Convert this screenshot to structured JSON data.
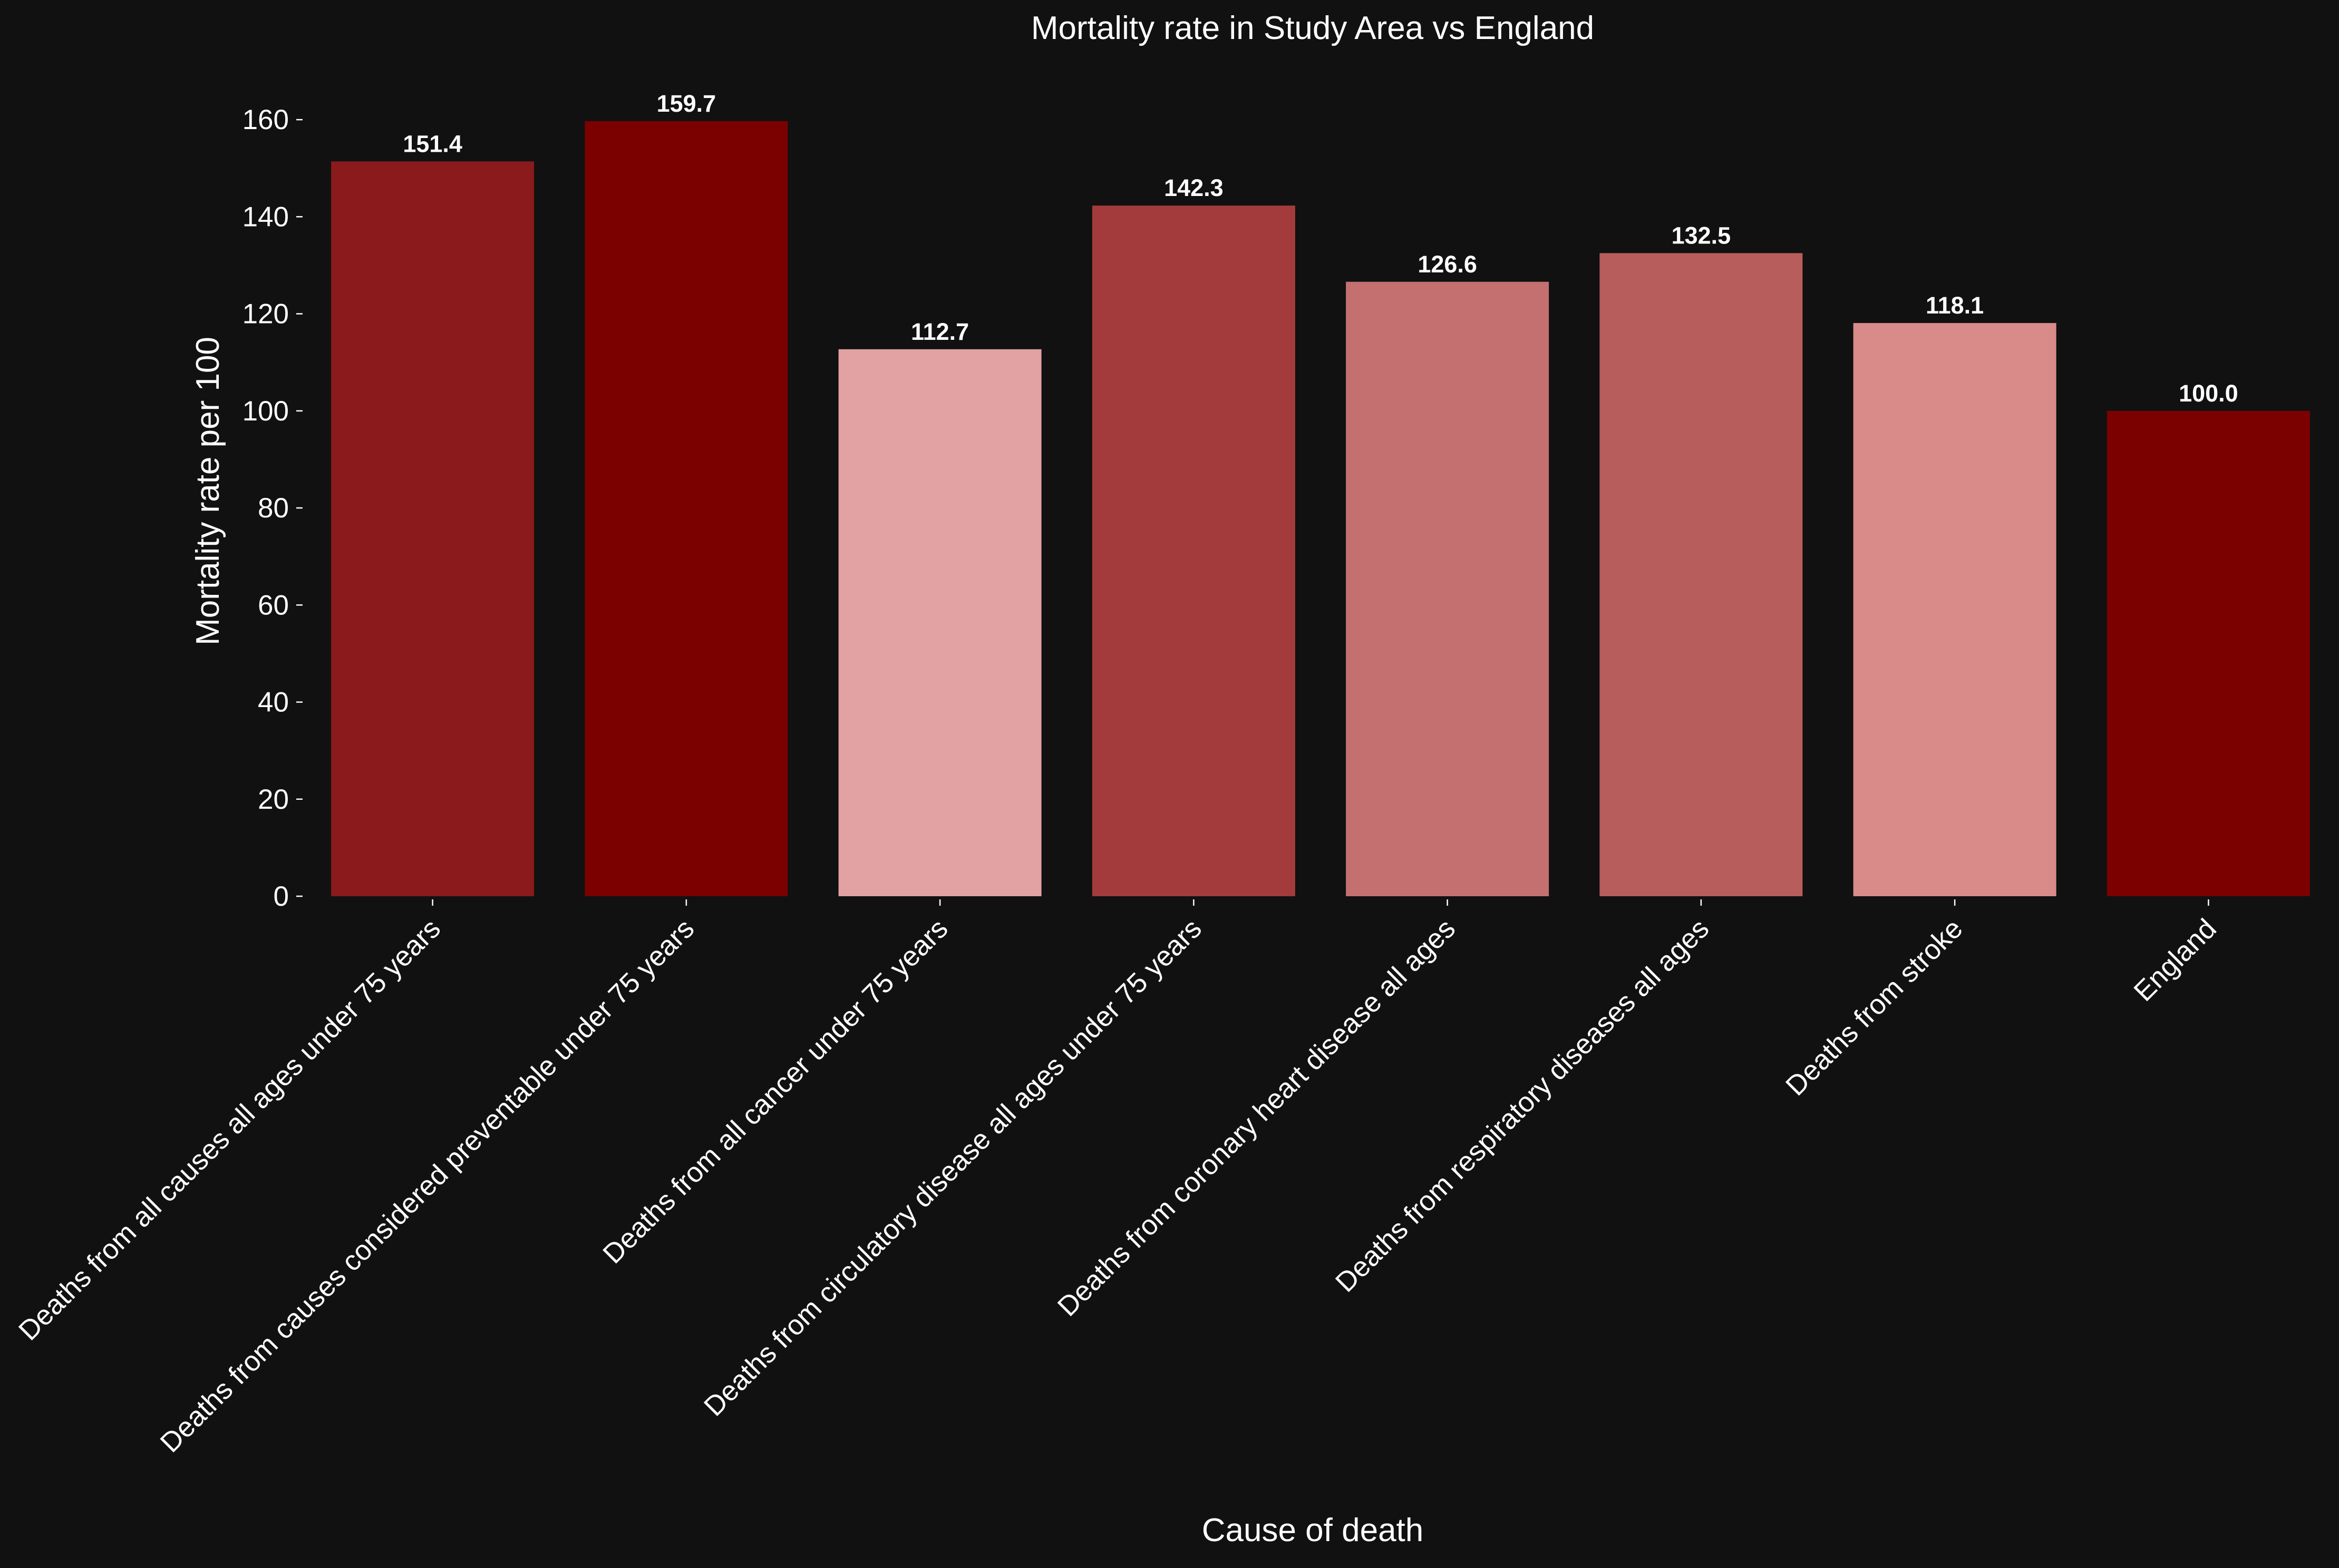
{
  "chart_data": {
    "type": "bar",
    "title": "Mortality rate in Study Area vs England",
    "xlabel": "Cause of death",
    "ylabel": "Mortality rate per 100",
    "ylim": [
      0,
      170
    ],
    "yticks": [
      0,
      20,
      40,
      60,
      80,
      100,
      120,
      140,
      160
    ],
    "grid": false,
    "legend": "none",
    "categories": [
      "Deaths from all causes all ages under 75 years",
      "Deaths from causes considered preventable under 75 years",
      "Deaths from all cancer under 75 years",
      "Deaths from circulatory disease all ages under 75 years",
      "Deaths from coronary heart disease all ages",
      "Deaths from respiratory diseases all ages",
      "Deaths from stroke",
      "England"
    ],
    "values": [
      151.4,
      159.7,
      112.7,
      142.3,
      126.6,
      132.5,
      118.1,
      100.0
    ],
    "data_labels": [
      "151.4",
      "159.7",
      "112.7",
      "142.3",
      "126.6",
      "132.5",
      "118.1",
      "100.0"
    ],
    "colors": [
      "#8b1a1d",
      "#7b0000",
      "#e2a1a2",
      "#a33b3d",
      "#c47070",
      "#b75d5c",
      "#d98b89",
      "#7b0000"
    ]
  }
}
